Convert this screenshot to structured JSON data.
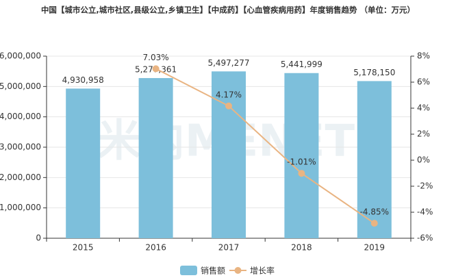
{
  "chart_data": {
    "type": "bar_line",
    "title": "中国【城市公立,城市社区,县级公立,乡镇卫生】【中成药】【心血管疾病用药】年度销售趋势 （单位：万元）",
    "watermark": "米内MENET",
    "categories": [
      "2015",
      "2016",
      "2017",
      "2018",
      "2019"
    ],
    "series": [
      {
        "name": "销售额",
        "type": "bar",
        "color": "#7dbfdb",
        "values": [
          4930958,
          5277361,
          5497277,
          5441999,
          5178150
        ],
        "value_labels": [
          "4,930,958",
          "5,277,361",
          "5,497,277",
          "5,441,999",
          "5,178,150"
        ]
      },
      {
        "name": "增长率",
        "type": "line",
        "axis": "y2",
        "color": "#e9b482",
        "values": [
          null,
          7.03,
          4.17,
          -1.01,
          -4.85
        ],
        "value_labels": [
          null,
          "7.03%",
          "4.17%",
          "-1.01%",
          "-4.85%"
        ]
      }
    ],
    "ylim": [
      0,
      6000000
    ],
    "yticks": [
      0,
      {
        "value": 1000000,
        "label": "1,000,000"
      },
      {
        "value": 2000000,
        "label": "2,000,000"
      },
      {
        "value": 3000000,
        "label": "3,000,000"
      },
      {
        "value": 4000000,
        "label": "4,000,000"
      },
      {
        "value": 5000000,
        "label": "5,000,000"
      },
      {
        "value": 6000000,
        "label": "6,000,000"
      }
    ],
    "y2lim": [
      -6,
      8
    ],
    "y2ticks": [
      {
        "value": -6,
        "label": "-6%"
      },
      {
        "value": -4,
        "label": "-4%"
      },
      {
        "value": -2,
        "label": "-2%"
      },
      {
        "value": 0,
        "label": "0%"
      },
      {
        "value": 2,
        "label": "2%"
      },
      {
        "value": 4,
        "label": "4%"
      },
      {
        "value": 6,
        "label": "6%"
      },
      {
        "value": 8,
        "label": "8%"
      }
    ],
    "grid": true,
    "legend": "bottom"
  }
}
